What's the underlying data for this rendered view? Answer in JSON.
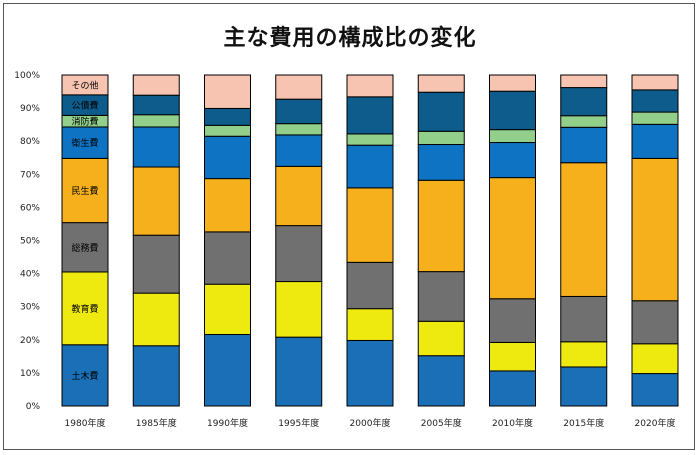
{
  "chart_data": {
    "type": "bar",
    "stacked": true,
    "title": "主な費用の構成比の変化",
    "categories": [
      "1980年度",
      "1985年度",
      "1990年度",
      "1995年度",
      "2000年度",
      "2005年度",
      "2010年度",
      "2015年度",
      "2020年度"
    ],
    "ylim": [
      0,
      100
    ],
    "yticks": [
      "0%",
      "10%",
      "20%",
      "30%",
      "40%",
      "50%",
      "60%",
      "70%",
      "80%",
      "90%",
      "100%"
    ],
    "grid": false,
    "legend": "inline-labels-first-bar",
    "series": [
      {
        "name": "土木費",
        "color": "#1a6fb6",
        "values": [
          18.5,
          18.2,
          21.6,
          20.8,
          19.8,
          15.2,
          10.6,
          11.8,
          9.8
        ]
      },
      {
        "name": "教育費",
        "color": "#eeea10",
        "values": [
          22.0,
          15.9,
          15.2,
          16.8,
          9.6,
          10.4,
          8.6,
          7.6,
          9.0
        ]
      },
      {
        "name": "総務費",
        "color": "#707070",
        "values": [
          14.9,
          17.5,
          15.8,
          16.9,
          14.0,
          15.0,
          13.2,
          13.7,
          13.0
        ]
      },
      {
        "name": "民生費",
        "color": "#f5b01c",
        "values": [
          19.4,
          20.6,
          16.1,
          17.9,
          22.5,
          27.6,
          36.6,
          40.4,
          43.0
        ]
      },
      {
        "name": "衛生費",
        "color": "#0d73c2",
        "values": [
          9.5,
          12.1,
          12.8,
          9.5,
          12.9,
          10.8,
          10.6,
          10.7,
          10.3
        ]
      },
      {
        "name": "消防費",
        "color": "#92cf8a",
        "values": [
          3.5,
          3.7,
          3.3,
          3.4,
          3.4,
          4.0,
          3.9,
          3.5,
          3.7
        ]
      },
      {
        "name": "公債費",
        "color": "#0d5c8c",
        "values": [
          6.2,
          5.9,
          5.1,
          7.4,
          11.2,
          11.8,
          11.6,
          8.5,
          6.7
        ]
      },
      {
        "name": "その他",
        "color": "#f6c4b0",
        "values": [
          6.0,
          6.1,
          10.1,
          7.3,
          6.6,
          5.2,
          4.9,
          3.8,
          4.5
        ]
      }
    ]
  }
}
